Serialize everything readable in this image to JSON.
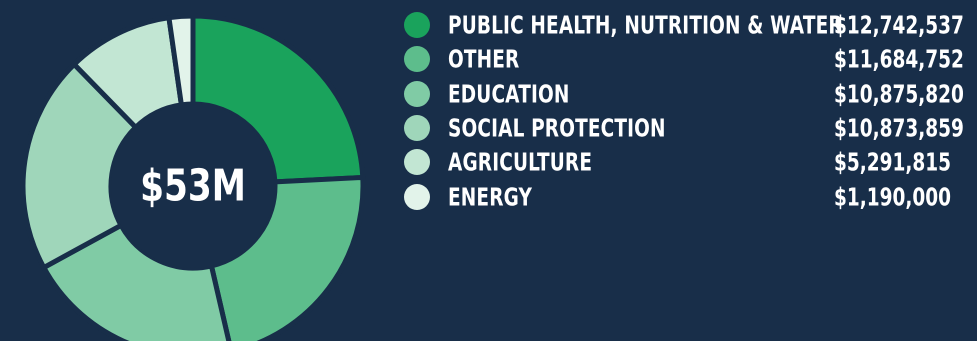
{
  "chart_data": {
    "type": "pie",
    "center_label": "$53M",
    "categories": [
      "PUBLIC HEALTH, NUTRITION & WATER",
      "OTHER",
      "EDUCATION",
      "SOCIAL PROTECTION",
      "AGRICULTURE",
      "ENERGY"
    ],
    "values": [
      12742537,
      11684752,
      10875820,
      10873859,
      5291815,
      1190000
    ],
    "value_labels": [
      "$12,742,537",
      "$11,684,752",
      "$10,875,820",
      "$10,873,859",
      "$5,291,815",
      "$1,190,000"
    ],
    "colors": [
      "#1aa35c",
      "#5dbd8c",
      "#80cba5",
      "#9fd6ba",
      "#c2e6d3",
      "#e2f3ea"
    ],
    "legend_position": "right",
    "style": "donut"
  },
  "colors": {
    "background": "#182e49",
    "center_fill": "#182e49",
    "text": "#ffffff"
  }
}
